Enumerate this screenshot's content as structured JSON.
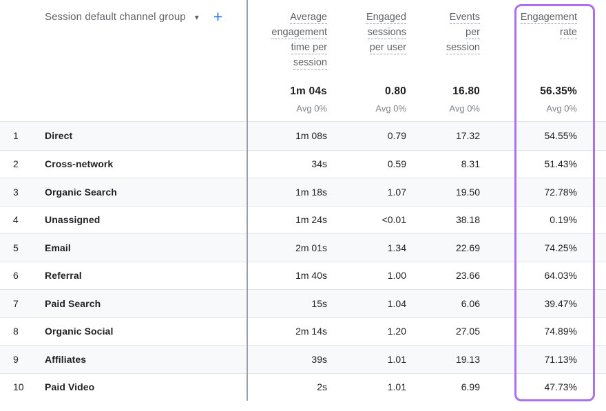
{
  "toolbar": {
    "dimension_label": "Session default channel group",
    "caret_icon": "▾",
    "plus_icon": "+"
  },
  "table": {
    "columns": [
      {
        "label": "Average engagement time per session",
        "lines": [
          "Average",
          "engagement",
          "time per",
          "session"
        ],
        "highlighted": false
      },
      {
        "label": "Engaged sessions per user",
        "lines": [
          "Engaged",
          "sessions",
          "per user"
        ],
        "highlighted": false
      },
      {
        "label": "Events per session",
        "lines": [
          "Events",
          "per",
          "session"
        ],
        "highlighted": false
      },
      {
        "label": "Engagement rate",
        "lines": [
          "Engagement",
          "rate"
        ],
        "highlighted": true
      }
    ],
    "summary": {
      "values": [
        "1m 04s",
        "0.80",
        "16.80",
        "56.35%"
      ],
      "avg_labels": [
        "Avg 0%",
        "Avg 0%",
        "Avg 0%",
        "Avg 0%"
      ]
    },
    "rows": [
      {
        "index": "1",
        "channel": "Direct",
        "values": [
          "1m 08s",
          "0.79",
          "17.32",
          "54.55%"
        ]
      },
      {
        "index": "2",
        "channel": "Cross-network",
        "values": [
          "34s",
          "0.59",
          "8.31",
          "51.43%"
        ]
      },
      {
        "index": "3",
        "channel": "Organic Search",
        "values": [
          "1m 18s",
          "1.07",
          "19.50",
          "72.78%"
        ]
      },
      {
        "index": "4",
        "channel": "Unassigned",
        "values": [
          "1m 24s",
          "<0.01",
          "38.18",
          "0.19%"
        ]
      },
      {
        "index": "5",
        "channel": "Email",
        "values": [
          "2m 01s",
          "1.34",
          "22.69",
          "74.25%"
        ]
      },
      {
        "index": "6",
        "channel": "Referral",
        "values": [
          "1m 40s",
          "1.00",
          "23.66",
          "64.03%"
        ]
      },
      {
        "index": "7",
        "channel": "Paid Search",
        "values": [
          "15s",
          "1.04",
          "6.06",
          "39.47%"
        ]
      },
      {
        "index": "8",
        "channel": "Organic Social",
        "values": [
          "2m 14s",
          "1.20",
          "27.05",
          "74.89%"
        ]
      },
      {
        "index": "9",
        "channel": "Affiliates",
        "values": [
          "39s",
          "1.01",
          "19.13",
          "71.13%"
        ]
      },
      {
        "index": "10",
        "channel": "Paid Video",
        "values": [
          "2s",
          "1.01",
          "6.99",
          "47.73%"
        ]
      }
    ]
  },
  "colors": {
    "highlight_border": "#ab70f0",
    "accent_blue": "#1a73e8",
    "text_primary": "#202124",
    "text_secondary": "#5f6368",
    "text_muted": "#80868b",
    "row_alt_bg": "#f8f9fa",
    "column_divider": "#9aa0a6",
    "row_separator": "#e4e4e4"
  }
}
